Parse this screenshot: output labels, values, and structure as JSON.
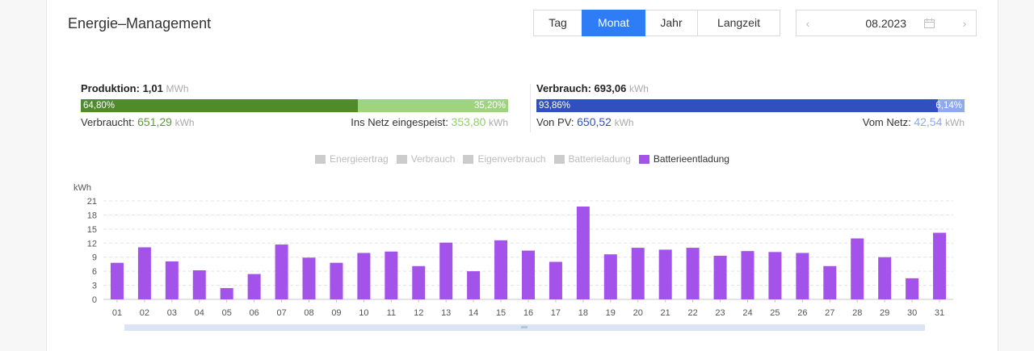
{
  "header": {
    "title": "Energie–Management",
    "periods": [
      {
        "label": "Tag",
        "active": false
      },
      {
        "label": "Monat",
        "active": true
      },
      {
        "label": "Jahr",
        "active": false
      },
      {
        "label": "Langzeit",
        "active": false
      }
    ],
    "date": {
      "prev_icon": "chevron-left-icon",
      "value": "08.2023",
      "calendar_icon": "calendar-icon",
      "next_icon": "chevron-right-icon"
    }
  },
  "production": {
    "label": "Produktion:",
    "value": "1,01",
    "unit": "MWh",
    "bar_left_pct": "64,80%",
    "bar_right_pct": "35,20%",
    "bar_left_fraction": 0.648,
    "left_color": "#4f8a2b",
    "right_color": "#9fd47f",
    "consumed_label": "Verbraucht:",
    "consumed_value": "651,29",
    "consumed_unit": "kWh",
    "fed_label": "Ins Netz eingespeist:",
    "fed_value": "353,80",
    "fed_unit": "kWh"
  },
  "consumption": {
    "label": "Verbrauch:",
    "value": "693,06",
    "unit": "kWh",
    "bar_left_pct": "93,86%",
    "bar_right_pct": "6,14%",
    "bar_left_fraction": 0.9386,
    "left_color": "#3150c0",
    "right_color": "#8ea9ec",
    "pv_label": "Von PV:",
    "pv_value": "650,52",
    "pv_unit": "kWh",
    "grid_label": "Vom Netz:",
    "grid_value": "42,54",
    "grid_unit": "kWh"
  },
  "legend": [
    {
      "label": "Energieertrag",
      "active": false
    },
    {
      "label": "Verbrauch",
      "active": false
    },
    {
      "label": "Eigenverbrauch",
      "active": false
    },
    {
      "label": "Batterieladung",
      "active": false
    },
    {
      "label": "Batterieentladung",
      "active": true
    }
  ],
  "colors": {
    "inactive": "#cccccc",
    "bar": "#a352ea",
    "accent": "#2f7df6",
    "pv_text": "#5a9a33",
    "feed_text": "#8fcf6b",
    "cons_text": "#3150c0",
    "grid_text": "#8ea9ec"
  },
  "chart_data": {
    "type": "bar",
    "ylabel": "kWh",
    "ylim": [
      0,
      21
    ],
    "yticks": [
      0,
      3,
      6,
      9,
      12,
      15,
      18,
      21
    ],
    "grid": true,
    "categories": [
      "01",
      "02",
      "03",
      "04",
      "05",
      "06",
      "07",
      "08",
      "09",
      "10",
      "11",
      "12",
      "13",
      "14",
      "15",
      "16",
      "17",
      "18",
      "19",
      "20",
      "21",
      "22",
      "23",
      "24",
      "25",
      "26",
      "27",
      "28",
      "29",
      "30",
      "31"
    ],
    "series": [
      {
        "name": "Batterieentladung",
        "values": [
          7.8,
          11.1,
          8.1,
          6.2,
          2.4,
          5.4,
          11.7,
          8.9,
          7.8,
          9.9,
          10.2,
          7.1,
          12.1,
          6.0,
          12.6,
          10.4,
          8.0,
          19.8,
          9.6,
          11.0,
          10.6,
          11.0,
          9.3,
          10.3,
          10.1,
          9.9,
          7.1,
          13.0,
          9.0,
          4.5,
          14.2
        ]
      }
    ]
  }
}
